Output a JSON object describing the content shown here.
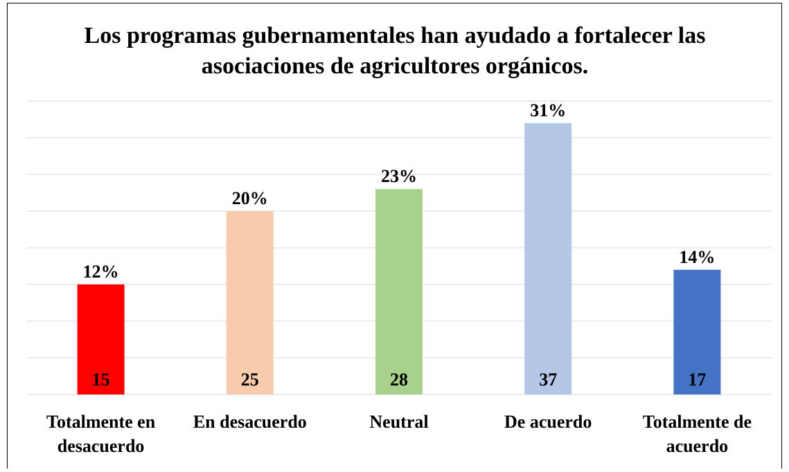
{
  "chart_data": {
    "type": "bar",
    "title": "Los programas gubernamentales han ayudado a fortalecer las asociaciones de agricultores orgánicos.",
    "categories": [
      "Totalmente en desacuerdo",
      "En desacuerdo",
      "Neutral",
      "De acuerdo",
      "Totalmente de acuerdo"
    ],
    "values": [
      15,
      25,
      28,
      37,
      17
    ],
    "shares": [
      12,
      20,
      23,
      31,
      14
    ],
    "share_labels": [
      "12%",
      "20%",
      "23%",
      "31%",
      "14%"
    ],
    "colors": [
      "#ff0000",
      "#f8cbad",
      "#a9d18e",
      "#b4c7e7",
      "#4472c4"
    ],
    "ylim": [
      0,
      40
    ],
    "yticks": [
      0,
      5,
      10,
      15,
      20,
      25,
      30,
      35,
      40
    ],
    "grid": true
  }
}
